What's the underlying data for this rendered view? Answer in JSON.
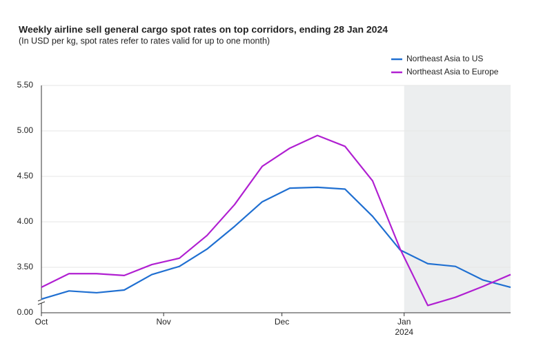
{
  "chart_data": {
    "type": "line",
    "title": "Weekly airline sell general cargo spot rates on top corridors, ending 28 Jan 2024",
    "subtitle": "(In USD per kg, spot rates refer to rates valid for up to one month)",
    "x": [
      0,
      7,
      14,
      21,
      28,
      35,
      42,
      49,
      56,
      63,
      70,
      77,
      84,
      91,
      98,
      105,
      112,
      119
    ],
    "xlim": [
      0,
      119
    ],
    "xticks": [
      {
        "value": 0,
        "label": "Oct"
      },
      {
        "value": 31,
        "label": "Nov"
      },
      {
        "value": 61,
        "label": "Dec"
      },
      {
        "value": 92,
        "label": "Jan"
      }
    ],
    "xtick_year": "2024",
    "highlight_range": [
      92,
      119
    ],
    "ylim": [
      3.0,
      5.5
    ],
    "yticks": [
      {
        "value": 3.5,
        "label": "3.50"
      },
      {
        "value": 4.0,
        "label": "4.00"
      },
      {
        "value": 4.5,
        "label": "4.50"
      },
      {
        "value": 5.0,
        "label": "5.00"
      },
      {
        "value": 5.5,
        "label": "5.50"
      }
    ],
    "axis_break": true,
    "baseline_label": "0.00",
    "grid": true,
    "legend": "top-right",
    "series": [
      {
        "name": "Northeast Asia to US",
        "color": "#1f6fd1",
        "values": [
          3.15,
          3.24,
          3.22,
          3.25,
          3.42,
          3.51,
          3.7,
          3.95,
          4.22,
          4.37,
          4.38,
          4.36,
          4.06,
          3.69,
          3.54,
          3.51,
          3.36,
          3.28
        ]
      },
      {
        "name": "Northeast Asia to Europe",
        "color": "#b01fd1",
        "values": [
          3.28,
          3.43,
          3.43,
          3.41,
          3.53,
          3.6,
          3.85,
          4.19,
          4.61,
          4.81,
          4.95,
          4.83,
          4.45,
          3.7,
          3.08,
          3.17,
          3.29,
          3.42
        ]
      }
    ]
  }
}
